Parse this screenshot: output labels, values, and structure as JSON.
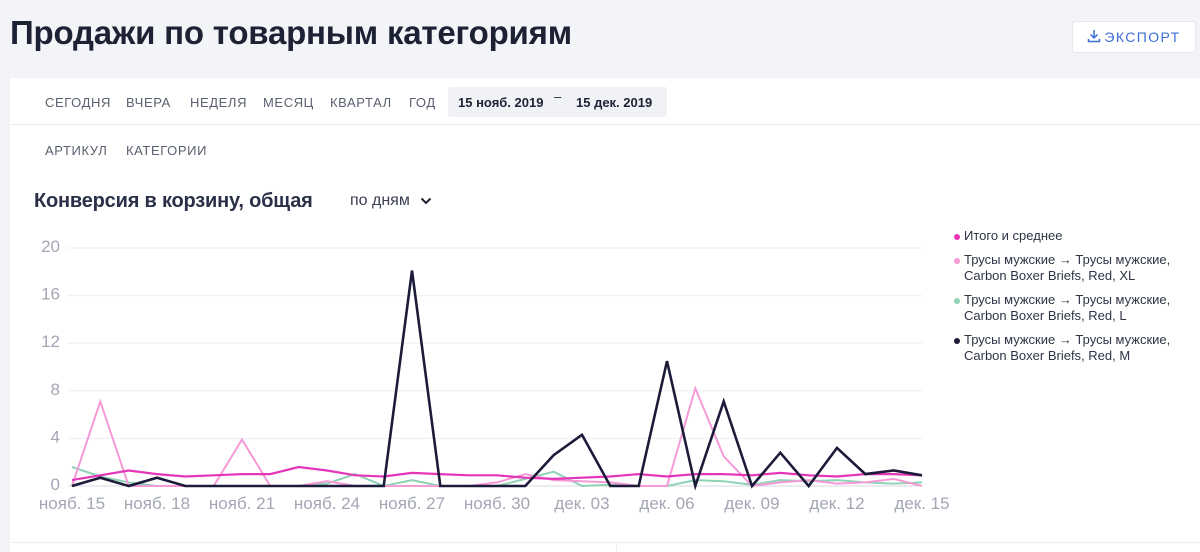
{
  "header": {
    "title": "Продажи по товарным категориям",
    "export_label": "ЭКСПОРТ"
  },
  "period_tabs": [
    "СЕГОДНЯ",
    "ВЧЕРА",
    "НЕДЕЛЯ",
    "МЕСЯЦ",
    "КВАРТАЛ",
    "ГОД"
  ],
  "date_range": {
    "from": "15 нояб. 2019",
    "separator": "–",
    "to": "15 дек. 2019"
  },
  "group_tabs": [
    "АРТИКУЛ",
    "КАТЕГОРИИ"
  ],
  "chart_title": "Конверсия в корзину, общая",
  "granularity": "по дням",
  "chart_data": {
    "type": "line",
    "x": [
      "нояб. 15",
      "нояб. 16",
      "нояб. 17",
      "нояб. 18",
      "нояб. 19",
      "нояб. 20",
      "нояб. 21",
      "нояб. 22",
      "нояб. 23",
      "нояб. 24",
      "нояб. 25",
      "нояб. 26",
      "нояб. 27",
      "нояб. 28",
      "нояб. 29",
      "нояб. 30",
      "дек. 01",
      "дек. 02",
      "дек. 03",
      "дек. 04",
      "дек. 05",
      "дек. 06",
      "дек. 07",
      "дек. 08",
      "дек. 09",
      "дек. 10",
      "дек. 11",
      "дек. 12",
      "дек. 13",
      "дек. 14",
      "дек. 15"
    ],
    "x_ticks": [
      "нояб. 15",
      "нояб. 18",
      "нояб. 21",
      "нояб. 24",
      "нояб. 27",
      "нояб. 30",
      "дек. 03",
      "дек. 06",
      "дек. 09",
      "дек. 12",
      "дек. 15"
    ],
    "ylim": [
      0,
      20
    ],
    "y_ticks": [
      0,
      4,
      8,
      12,
      16,
      20
    ],
    "grid": true,
    "legend_position": "right",
    "series": [
      {
        "name": "Итого и среднее",
        "color": "#e535b9",
        "values": [
          0.5,
          0.9,
          1.3,
          1.0,
          0.8,
          0.9,
          1.0,
          1.0,
          1.6,
          1.3,
          0.9,
          0.8,
          1.1,
          1.0,
          0.9,
          0.9,
          0.7,
          0.6,
          0.7,
          0.8,
          1.0,
          0.8,
          1.0,
          1.0,
          0.9,
          1.1,
          0.9,
          0.8,
          1.0,
          1.0,
          0.9
        ]
      },
      {
        "name": "Трусы мужские → Трусы мужские, Carbon Boxer Briefs, Red, XL",
        "color": "#f59ad6",
        "values": [
          0,
          7.1,
          0,
          0,
          0,
          0,
          3.9,
          0,
          0,
          0.4,
          0,
          0,
          0,
          0,
          0,
          0.3,
          1.0,
          0.5,
          0.4,
          0.3,
          0,
          0,
          8.2,
          2.5,
          0,
          0.3,
          0.5,
          0.2,
          0.3,
          0.6,
          0
        ]
      },
      {
        "name": "Трусы мужские → Трусы мужские, Carbon Boxer Briefs, Red, L",
        "color": "#8fd2b6",
        "values": [
          1.6,
          0.8,
          0.3,
          0,
          0,
          0,
          0,
          0,
          0,
          0.2,
          1.0,
          0,
          0.5,
          0,
          0,
          0,
          0.6,
          1.2,
          0,
          0.1,
          0,
          0,
          0.5,
          0.4,
          0.1,
          0.5,
          0.4,
          0.5,
          0.3,
          0.2,
          0.3
        ]
      },
      {
        "name": "Трусы мужские → Трусы мужские, Carbon Boxer Briefs, Red, M",
        "color": "#1c1b3a",
        "values": [
          0,
          0.7,
          0,
          0.7,
          0,
          0,
          0,
          0,
          0,
          0,
          0,
          0,
          18.1,
          0,
          0,
          0,
          0,
          2.6,
          4.3,
          0,
          0,
          10.5,
          0,
          7.1,
          0,
          2.8,
          0,
          3.2,
          1.0,
          1.3,
          0.9
        ]
      }
    ]
  }
}
